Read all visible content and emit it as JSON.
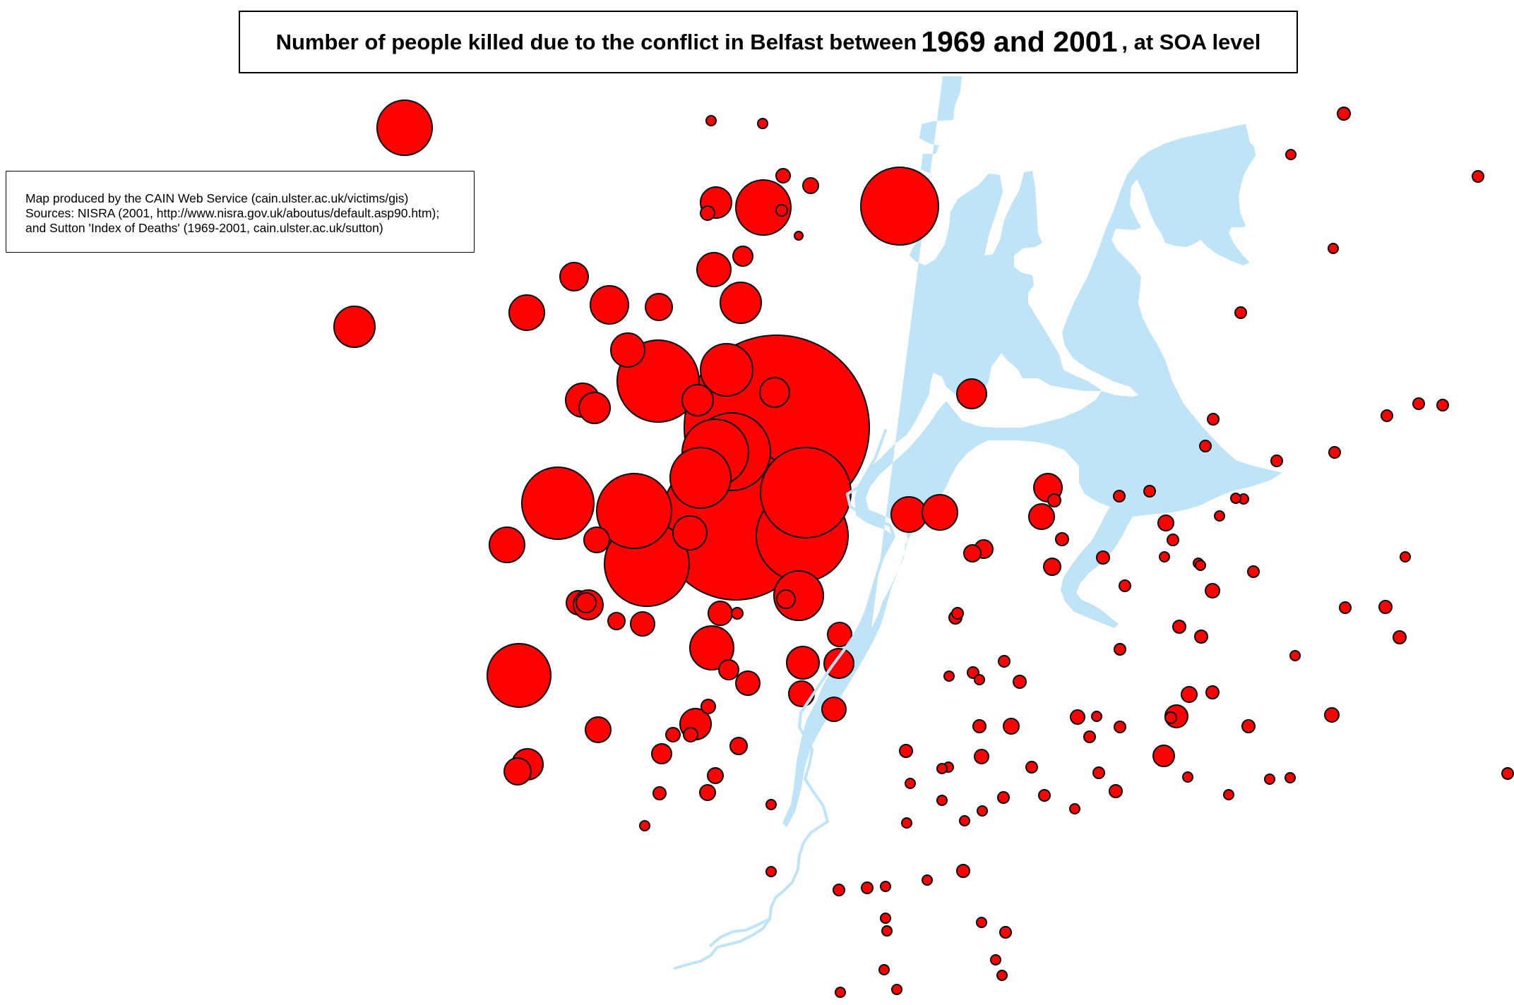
{
  "title": {
    "part1": "Number of people killed due to the conflict in Belfast between",
    "part2": "1969 and 2001",
    "part3": ", at SOA level"
  },
  "credits": {
    "line1": "Map produced by the CAIN Web Service (cain.ulster.ac.uk/victims/gis)",
    "line2": "Sources: NISRA (2001, http://www.nisra.gov.uk/aboutus/default.asp90.htm);",
    "line3": "and Sutton 'Index of Deaths' (1969-2001, cain.ulster.ac.uk/sutton)"
  },
  "colors": {
    "marker_fill": "#ff0000",
    "marker_stroke": "#000000",
    "water": "#bfe3f7",
    "background": "#ffffff"
  }
}
